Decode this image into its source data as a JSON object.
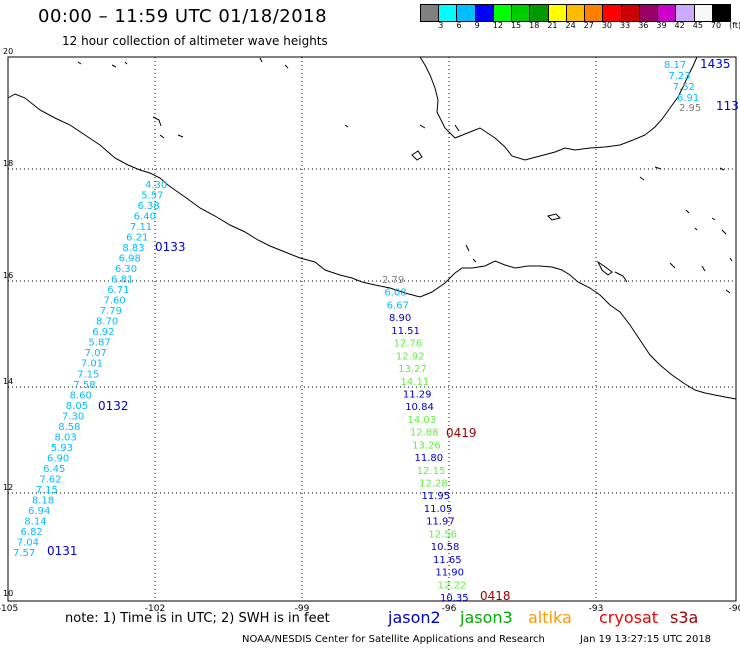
{
  "header": {
    "title": "00:00 – 11:59 UTC 01/18/2018",
    "subtitle": "12 hour collection of altimeter wave heights"
  },
  "legend": {
    "colors": [
      "#808080",
      "#00ffff",
      "#00bfff",
      "#0000ff",
      "#00ff00",
      "#00cc00",
      "#009900",
      "#ffff00",
      "#ffbb00",
      "#ff8000",
      "#ff0000",
      "#cc0000",
      "#990066",
      "#cc00cc",
      "#ccaaff",
      "#f8f8f8",
      "#000000"
    ],
    "labels": [
      "3",
      "6",
      "9",
      "12",
      "15",
      "18",
      "21",
      "24",
      "27",
      "30",
      "33",
      "36",
      "39",
      "42",
      "45",
      "70",
      "(ft)"
    ]
  },
  "axes": {
    "lon_ticks": [
      "-105",
      "-102",
      "-99",
      "-96",
      "-93",
      "-90"
    ],
    "lat_ticks": [
      "10",
      "12",
      "14",
      "16",
      "18",
      "20"
    ]
  },
  "tracks": [
    {
      "color": "#00bfff",
      "labels": [
        "4.30",
        "5.57",
        "6.38",
        "6.40",
        "7.11",
        "6.21",
        "8.83",
        "6.98",
        "6.30",
        "6.81",
        "6.71",
        "7.60",
        "7.79",
        "8.70",
        "6.92",
        "5.87",
        "7.07",
        "7.01",
        "7.15",
        "7.58",
        "8.60",
        "8.05",
        "7.30",
        "8.58",
        "8.03",
        "5.93",
        "6.90",
        "6.45",
        "7.62",
        "7.15",
        "8.18",
        "6.94",
        "8.14",
        "6.82",
        "7.04",
        "7.57"
      ]
    },
    {
      "color": "#00bfff",
      "labels": [
        "8.17",
        "7.23",
        "7.52",
        "6.91"
      ]
    }
  ],
  "track_c_labels": [
    {
      "text": "2.79",
      "color": "#808080"
    },
    {
      "text": "6.08",
      "color": "#00bfff"
    },
    {
      "text": "6.67",
      "color": "#00bfff"
    },
    {
      "text": "8.90",
      "color": "#0000cc"
    },
    {
      "text": "11.51",
      "color": "#0000cc"
    },
    {
      "text": "12.76",
      "color": "#66ee44"
    },
    {
      "text": "12.92",
      "color": "#66ee44"
    },
    {
      "text": "13.27",
      "color": "#66ee44"
    },
    {
      "text": "14.11",
      "color": "#66ee44"
    },
    {
      "text": "11.29",
      "color": "#0000cc"
    },
    {
      "text": "10.84",
      "color": "#0000cc"
    },
    {
      "text": "14.03",
      "color": "#66ee44"
    },
    {
      "text": "12.88",
      "color": "#66ee44"
    },
    {
      "text": "13.26",
      "color": "#66ee44"
    },
    {
      "text": "11.80",
      "color": "#0000cc"
    },
    {
      "text": "12.15",
      "color": "#66ee44"
    },
    {
      "text": "12.28",
      "color": "#66ee44"
    },
    {
      "text": "11.95",
      "color": "#0000cc"
    },
    {
      "text": "11.05",
      "color": "#0000cc"
    },
    {
      "text": "11.97",
      "color": "#0000cc"
    },
    {
      "text": "12.56",
      "color": "#66ee44"
    },
    {
      "text": "10.58",
      "color": "#0000cc"
    },
    {
      "text": "11.65",
      "color": "#0000cc"
    },
    {
      "text": "11.90",
      "color": "#0000cc"
    },
    {
      "text": "12.22",
      "color": "#66ee44"
    },
    {
      "text": "10.35",
      "color": "#0000cc"
    }
  ],
  "extra_labels": {
    "d_gray": "2.95"
  },
  "time_labels": [
    {
      "text": "0133",
      "color": "#0000cc"
    },
    {
      "text": "0132",
      "color": "#0000cc"
    },
    {
      "text": "0131",
      "color": "#0000cc"
    },
    {
      "text": "1435",
      "color": "#0000cc"
    },
    {
      "text": "113",
      "color": "#0000cc"
    },
    {
      "text": "0419",
      "color": "#990000"
    },
    {
      "text": "0418",
      "color": "#990000"
    }
  ],
  "footer": {
    "note": "note: 1) Time is in UTC; 2) SWH is in feet",
    "satellites": [
      {
        "name": "jason2",
        "color": "#0000cc"
      },
      {
        "name": "jason3",
        "color": "#00aa00"
      },
      {
        "name": "altika",
        "color": "#ff9900"
      },
      {
        "name": "cryosat",
        "color": "#ee0000"
      },
      {
        "name": "s3a",
        "color": "#990000"
      }
    ],
    "credit": "NOAA/NESDIS Center for Satellite Applications and Research",
    "timestamp": "Jan 19 13:27:15 UTC 2018"
  }
}
